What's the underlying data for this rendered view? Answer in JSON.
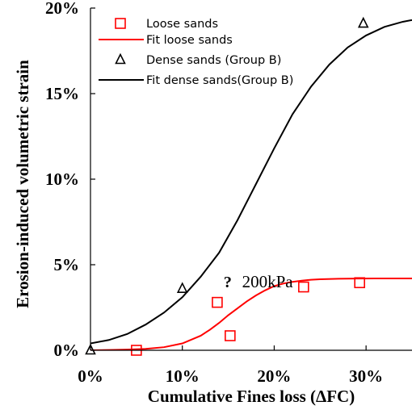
{
  "chart_data": {
    "type": "scatter",
    "xlabel": "Cumulative Fines loss (ΔFC)",
    "ylabel": "Erosion-induced  volumetric strain",
    "xlim": [
      0,
      35
    ],
    "ylim": [
      0,
      20
    ],
    "x_ticks": [
      {
        "value": 0,
        "label": "0%"
      },
      {
        "value": 10,
        "label": "10%"
      },
      {
        "value": 20,
        "label": "20%"
      },
      {
        "value": 30,
        "label": "30%"
      }
    ],
    "y_ticks": [
      {
        "value": 0,
        "label": "0%"
      },
      {
        "value": 5,
        "label": "5%"
      },
      {
        "value": 10,
        "label": "10%"
      },
      {
        "value": 15,
        "label": "15%"
      },
      {
        "value": 20,
        "label": "20%"
      }
    ],
    "grid": false,
    "legend_position": "top-left",
    "series": [
      {
        "name": "Loose sands",
        "kind": "scatter",
        "marker": "square-open",
        "color": "#ff0000",
        "x": [
          5.0,
          13.8,
          15.2,
          23.2,
          29.3
        ],
        "y": [
          0.0,
          2.8,
          0.85,
          3.7,
          3.95
        ]
      },
      {
        "name": "Fit loose sands",
        "kind": "line",
        "color": "#ff0000",
        "x": [
          0,
          2,
          4,
          6,
          8,
          10,
          12,
          13,
          14,
          15,
          16,
          17,
          18,
          19,
          20,
          21,
          22,
          23,
          24,
          25,
          27,
          29,
          31,
          33,
          35
        ],
        "y": [
          0.0,
          0.02,
          0.04,
          0.08,
          0.18,
          0.4,
          0.85,
          1.2,
          1.6,
          2.05,
          2.45,
          2.85,
          3.2,
          3.5,
          3.75,
          3.9,
          4.0,
          4.07,
          4.12,
          4.15,
          4.18,
          4.19,
          4.2,
          4.2,
          4.2
        ]
      },
      {
        "name": "Dense sands (Group B)",
        "kind": "scatter",
        "marker": "triangle-open",
        "color": "#000000",
        "x": [
          0.0,
          10.0,
          29.7
        ],
        "y": [
          0.0,
          3.6,
          19.1
        ]
      },
      {
        "name": "Fit dense sands(Group B)",
        "kind": "line",
        "color": "#000000",
        "x": [
          0,
          2,
          4,
          6,
          8,
          10,
          12,
          14,
          16,
          18,
          20,
          22,
          24,
          26,
          28,
          30,
          32,
          34,
          35
        ],
        "y": [
          0.4,
          0.6,
          0.95,
          1.5,
          2.2,
          3.1,
          4.3,
          5.7,
          7.6,
          9.7,
          11.8,
          13.8,
          15.4,
          16.7,
          17.7,
          18.4,
          18.9,
          19.2,
          19.3
        ]
      }
    ],
    "annotations": [
      {
        "text": "?",
        "x": 14.5,
        "y": 4.0
      },
      {
        "text": "200kPa",
        "x": 16.5,
        "y": 4.0
      }
    ]
  }
}
